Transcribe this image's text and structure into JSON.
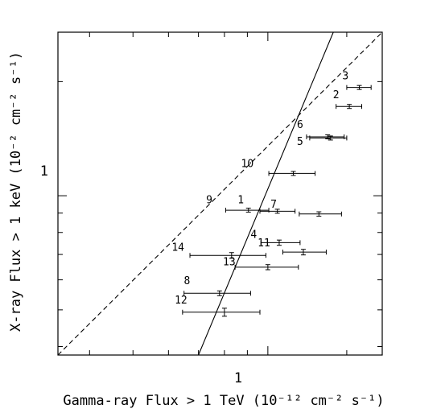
{
  "chart_data": {
    "type": "scatter",
    "title": "",
    "xlabel": "Gamma-ray  Flux > 1 TeV (10⁻¹² cm⁻² s⁻¹)",
    "ylabel": "X-ray Flux > 1 keV (10⁻² cm⁻² s⁻¹)",
    "x_scale": "log",
    "y_scale": "log",
    "xlim": [
      0.34,
      1.8
    ],
    "ylim": [
      0.38,
      2.7
    ],
    "x_tick_labels": [
      "1"
    ],
    "y_tick_labels": [
      "1"
    ],
    "grid": false,
    "legend": "none",
    "series": [
      {
        "points": [
          {
            "label": "1",
            "x": 0.905,
            "y": 0.916,
            "xerr_low": 0.1,
            "xerr_high": 0.1,
            "yerr": 0.006
          },
          {
            "label": "2",
            "x": 1.52,
            "y": 1.72,
            "xerr_low": 0.1,
            "xerr_high": 0.1,
            "yerr": 0.015
          },
          {
            "label": "3",
            "x": 1.6,
            "y": 1.93,
            "xerr_low": 0.1,
            "xerr_high": 0.1,
            "yerr": 0.015
          },
          {
            "label": "4",
            "x": 1.06,
            "y": 0.752,
            "xerr_low": 0.095,
            "xerr_high": 0.12,
            "yerr": 0.012
          },
          {
            "label": "5",
            "x": 1.38,
            "y": 1.42,
            "xerr_low": 0.14,
            "xerr_high": 0.12,
            "yerr": 0.012
          },
          {
            "label": "6",
            "x": 1.36,
            "y": 1.43,
            "xerr_low": 0.14,
            "xerr_high": 0.12,
            "yerr": 0.012
          },
          {
            "label": "7",
            "x": 1.05,
            "y": 0.91,
            "xerr_low": 0.09,
            "xerr_high": 0.1,
            "yerr": 0.008
          },
          {
            "label": "8",
            "x": 0.78,
            "y": 0.553,
            "xerr_low": 0.13,
            "xerr_high": 0.135,
            "yerr": 0.008
          },
          {
            "label": "9",
            "x": 1.3,
            "y": 0.895,
            "xerr_low": 0.125,
            "xerr_high": 0.16,
            "yerr": 0.012
          },
          {
            "label": "10",
            "x": 1.14,
            "y": 1.145,
            "xerr_low": 0.135,
            "xerr_high": 0.135,
            "yerr": 0.012
          },
          {
            "label": "11",
            "x": 1.2,
            "y": 0.71,
            "xerr_low": 0.12,
            "xerr_high": 0.15,
            "yerr": 0.012
          },
          {
            "label": "12",
            "x": 0.8,
            "y": 0.493,
            "xerr_low": 0.155,
            "xerr_high": 0.16,
            "yerr": 0.012
          },
          {
            "label": "13",
            "x": 1.0,
            "y": 0.648,
            "xerr_low": 0.155,
            "xerr_high": 0.17,
            "yerr": 0.01
          },
          {
            "label": "14",
            "x": 0.83,
            "y": 0.696,
            "xerr_low": 0.16,
            "xerr_high": 0.16,
            "yerr": 0.012
          }
        ]
      }
    ],
    "lines": [
      {
        "style": "solid",
        "points": [
          [
            0.7,
            0.38
          ],
          [
            1.4,
            2.7
          ]
        ]
      },
      {
        "style": "dashed",
        "points": [
          [
            0.34,
            0.38
          ],
          [
            1.8,
            2.7
          ]
        ]
      }
    ],
    "point_labels": [
      {
        "text": "1",
        "x": 0.87,
        "y": 0.955
      },
      {
        "text": "2",
        "x": 1.42,
        "y": 1.81
      },
      {
        "text": "3",
        "x": 1.49,
        "y": 2.03
      },
      {
        "text": "4",
        "x": 0.93,
        "y": 0.775
      },
      {
        "text": "5",
        "x": 1.18,
        "y": 1.36
      },
      {
        "text": "6",
        "x": 1.18,
        "y": 1.51
      },
      {
        "text": "7",
        "x": 1.03,
        "y": 0.93
      },
      {
        "text": "8",
        "x": 0.66,
        "y": 0.585
      },
      {
        "text": "9",
        "x": 0.74,
        "y": 0.955
      },
      {
        "text": "10",
        "x": 0.9,
        "y": 1.19
      },
      {
        "text": "11",
        "x": 0.98,
        "y": 0.735
      },
      {
        "text": "12",
        "x": 0.64,
        "y": 0.52
      },
      {
        "text": "13",
        "x": 0.82,
        "y": 0.655
      },
      {
        "text": "14",
        "x": 0.63,
        "y": 0.715
      }
    ]
  }
}
